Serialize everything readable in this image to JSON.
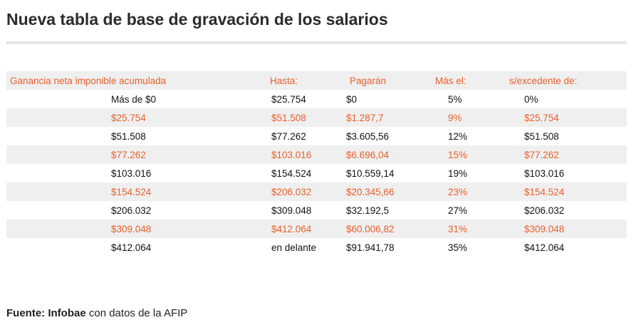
{
  "title": "Nueva tabla de base de gravación de los salarios",
  "table": {
    "headers": [
      "Ganancia neta imponible acumulada",
      "Hasta:",
      "Pagarán",
      "Más el:",
      "s/excedente de:"
    ],
    "rows": [
      [
        "Más de $0",
        "$25.754",
        "$0",
        "5%",
        "0%"
      ],
      [
        "$25.754",
        "$51.508",
        "$1.287,7",
        "9%",
        "$25.754"
      ],
      [
        "$51.508",
        "$77.262",
        "$3.605,56",
        "12%",
        "$51.508"
      ],
      [
        "$77.262",
        "$103.016",
        "$6.696,04",
        "15%",
        "$77.262"
      ],
      [
        "$103.016",
        "$154.524",
        "$10.559,14",
        "19%",
        "$103.016"
      ],
      [
        "$154.524",
        "$206.032",
        "$20.345,66",
        "23%",
        "$154.524"
      ],
      [
        "$206.032",
        "$309.048",
        "$32.192,5",
        "27%",
        "$206.032"
      ],
      [
        "$309.048",
        "$412.064",
        "$60.006,82",
        "31%",
        "$309.048"
      ],
      [
        "$412.064",
        "en delante",
        "$91.941,78",
        "35%",
        "$412.064"
      ]
    ]
  },
  "source": {
    "label": "Fuente:",
    "outlet": "Infobae",
    "rest": "con datos de la AFIP"
  },
  "colors": {
    "accent": "#e8602c",
    "stripe": "#efefef",
    "text": "#111111",
    "divider": "#e6e6e6"
  }
}
